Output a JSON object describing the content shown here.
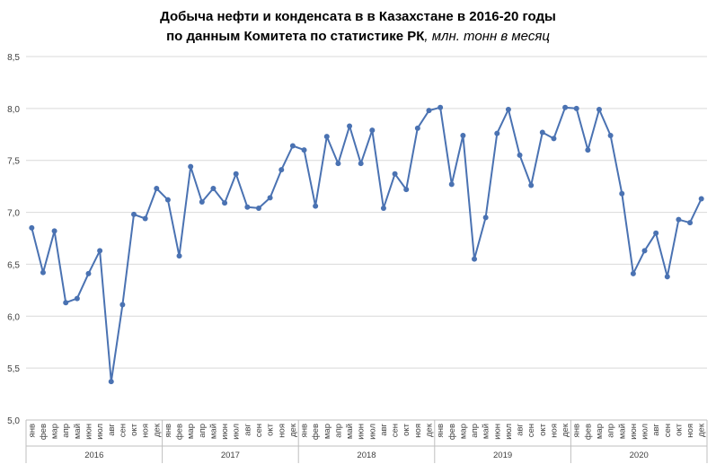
{
  "chart_data": {
    "type": "line",
    "title_line1": "Добыча нефти и конденсата в в Казахстане в 2016-20 годы",
    "title_line2_main": "по данным Комитета по статистике РК",
    "title_line2_sub": ", млн. тонн в месяц",
    "ylim": [
      5.0,
      8.5
    ],
    "yticks": [
      "5,0",
      "5,5",
      "6,0",
      "6,5",
      "7,0",
      "7,5",
      "8,0",
      "8,5"
    ],
    "grid": true,
    "legend": "none",
    "months": [
      "янв",
      "фев",
      "мар",
      "апр",
      "май",
      "июн",
      "июл",
      "авг",
      "сен",
      "окт",
      "ноя",
      "дек"
    ],
    "years": [
      "2016",
      "2017",
      "2018",
      "2019",
      "2020"
    ],
    "color": "#4a72b2",
    "values": [
      6.85,
      6.42,
      6.82,
      6.13,
      6.17,
      6.41,
      6.63,
      5.37,
      6.11,
      6.98,
      6.94,
      7.23,
      7.12,
      6.58,
      7.44,
      7.1,
      7.23,
      7.09,
      7.37,
      7.05,
      7.04,
      7.14,
      7.41,
      7.64,
      7.6,
      7.06,
      7.73,
      7.47,
      7.83,
      7.47,
      7.79,
      7.04,
      7.37,
      7.22,
      7.81,
      7.98,
      8.01,
      7.27,
      7.74,
      6.55,
      6.95,
      7.76,
      7.99,
      7.55,
      7.26,
      7.77,
      7.71,
      8.01,
      8.0,
      7.6,
      7.99,
      7.74,
      7.18,
      6.41,
      6.63,
      6.8,
      6.38,
      6.93,
      6.9,
      7.13
    ]
  }
}
